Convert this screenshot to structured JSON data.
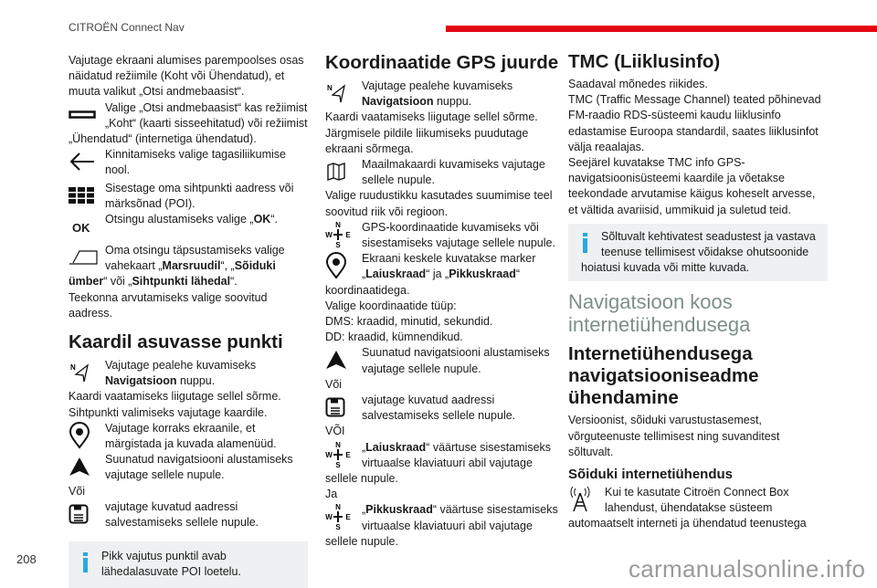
{
  "header": {
    "title": "CITROËN Connect Nav",
    "accent": "#e30613"
  },
  "page_number": "208",
  "watermark": "carmanualsonline.info",
  "col1": {
    "intro": [
      {
        "t": "Vajutage ekraani alumises parempoolses osas näidatud režiimile (Koht või Ühendatud), et muuta valikut „Otsi andmebaasist“."
      }
    ],
    "items": [
      {
        "icon": "rectangle-icon",
        "text": [
          {
            "t": "Valige „Otsi andmebaasist“ kas režiimist „Koht“ (kaarti sisseehitatud) või režiimist „Ühendatud“ (internetiga ühendatud)."
          }
        ]
      },
      {
        "icon": "arrow-left-icon",
        "text": [
          {
            "t": "Kinnitamiseks valige tagasiliikumise nool."
          }
        ]
      },
      {
        "icon": "keyboard-icon",
        "text": [
          {
            "t": "Sisestage oma sihtpunkti aadress või märksõnad (POI)."
          }
        ]
      },
      {
        "icon": "ok-icon",
        "icon_text": "OK",
        "text": [
          {
            "t": "Otsingu alustamiseks valige „"
          },
          {
            "t": "OK",
            "b": true
          },
          {
            "t": "“."
          }
        ]
      },
      {
        "icon": "tab-icon",
        "text": [
          {
            "t": "Oma otsingu täpsustamiseks valige vahekaart „"
          },
          {
            "t": "Marsruudil",
            "b": true
          },
          {
            "t": "“, „"
          },
          {
            "t": "Sõiduki ümber",
            "b": true
          },
          {
            "t": "“ või „"
          },
          {
            "t": "Sihtpunkti lähedal",
            "b": true
          },
          {
            "t": "“."
          }
        ]
      }
    ],
    "outro": "Teekonna arvutamiseks valige soovitud aadress.",
    "section2": {
      "title": "Kaardil asuvasse punkti",
      "nav": [
        {
          "t": "Vajutage pealehe kuvamiseks "
        },
        {
          "t": "Navigatsioon",
          "b": true
        },
        {
          "t": " nuppu."
        }
      ],
      "p1": "Kaardi vaatamiseks liigutage sellel sõrme.",
      "p2": "Sihtpunkti valimiseks vajutage kaardile.",
      "pin": "Vajutage korraks ekraanile, et märgistada ja kuvada alamenüüd.",
      "go": "Suunatud navigatsiooni alustamiseks vajutage sellele nupule.",
      "or": "Või",
      "save": "vajutage kuvatud aadressi salvestamiseks sellele nupule.",
      "info": "Pikk vajutus punktil avab lähedalasuvate POI loetelu."
    }
  },
  "col2": {
    "title": "Koordinaatide GPS juurde",
    "nav": [
      {
        "t": "Vajutage pealehe kuvamiseks "
      },
      {
        "t": "Navigatsioon",
        "b": true
      },
      {
        "t": " nuppu."
      }
    ],
    "p1": "Kaardi vaatamiseks liigutage sellel sõrme.",
    "p2": "Järgmisele pildile liikumiseks puudutage ekraani sõrmega.",
    "world": "Maailmakaardi kuvamiseks vajutage sellele nupule.",
    "p3": "Valige ruudustikku kasutades suumimise teel soovitud riik või regioon.",
    "gps": "GPS-koordinaatide kuvamiseks või sisestamiseks vajutage sellele nupule.",
    "marker": [
      {
        "t": "Ekraani keskele kuvatakse marker „"
      },
      {
        "t": "Laiuskraad",
        "b": true
      },
      {
        "t": "“ ja „"
      },
      {
        "t": "Pikkuskraad",
        "b": true
      },
      {
        "t": "“ koordinaatidega."
      }
    ],
    "p4": "Valige koordinaatide tüüp:",
    "p5": "DMS: kraadid, minutid, sekundid.",
    "p6": "DD: kraadid, kümnendikud.",
    "go": "Suunatud navigatsiooni alustamiseks vajutage sellele nupule.",
    "or": "Või",
    "save": "vajutage kuvatud aadressi salvestamiseks sellele nupule.",
    "or2": "VÕI",
    "lat": [
      {
        "t": "„"
      },
      {
        "t": "Laiuskraad",
        "b": true
      },
      {
        "t": "“ väärtuse sisestamiseks virtuaalse klaviatuuri abil vajutage sellele nupule."
      }
    ],
    "and": "Ja",
    "lon": [
      {
        "t": "„"
      },
      {
        "t": "Pikkuskraad",
        "b": true
      },
      {
        "t": "“ väärtuse sisestamiseks virtuaalse klaviatuuri abil vajutage sellele nupule."
      }
    ],
    "compass": {
      "n": "N",
      "s": "S",
      "w": "W",
      "e": "E"
    }
  },
  "col3": {
    "title": "TMC (Liiklusinfo)",
    "p1": "Saadaval mõnedes riikides.",
    "p2": "TMC (Traffic Message Channel) teated põhinevad FM-raadio RDS-süsteemi kaudu liiklusinfo edastamise Euroopa standardil, saates liiklusinfot välja reaalajas.",
    "p3": "Seejärel kuvatakse TMC info GPS-navigatsioonisüsteemi kaardile ja võetakse teekondade arvutamise käigus koheselt arvesse, et vältida avariisid, ummikuid ja suletud teid.",
    "info": "Sõltuvalt kehtivatest seadustest ja vastava teenuse tellimisest võidakse ohutsoonide hoiatusi kuvada või mitte kuvada.",
    "chapter": "Navigatsioon koos internetiühendusega",
    "h2": "Internetiühendusega navigatsiooniseadme ühendamine",
    "p4": "Versioonist, sõiduki varustustasemest, võrguteenuste tellimisest ning suvanditest sõltuvalt.",
    "h3": "Sõiduki internetiühendus",
    "p5": "Kui te kasutate Citroën Connect Box lahendust, ühendatakse süsteem automaatselt interneti ja ühendatud teenustega"
  }
}
